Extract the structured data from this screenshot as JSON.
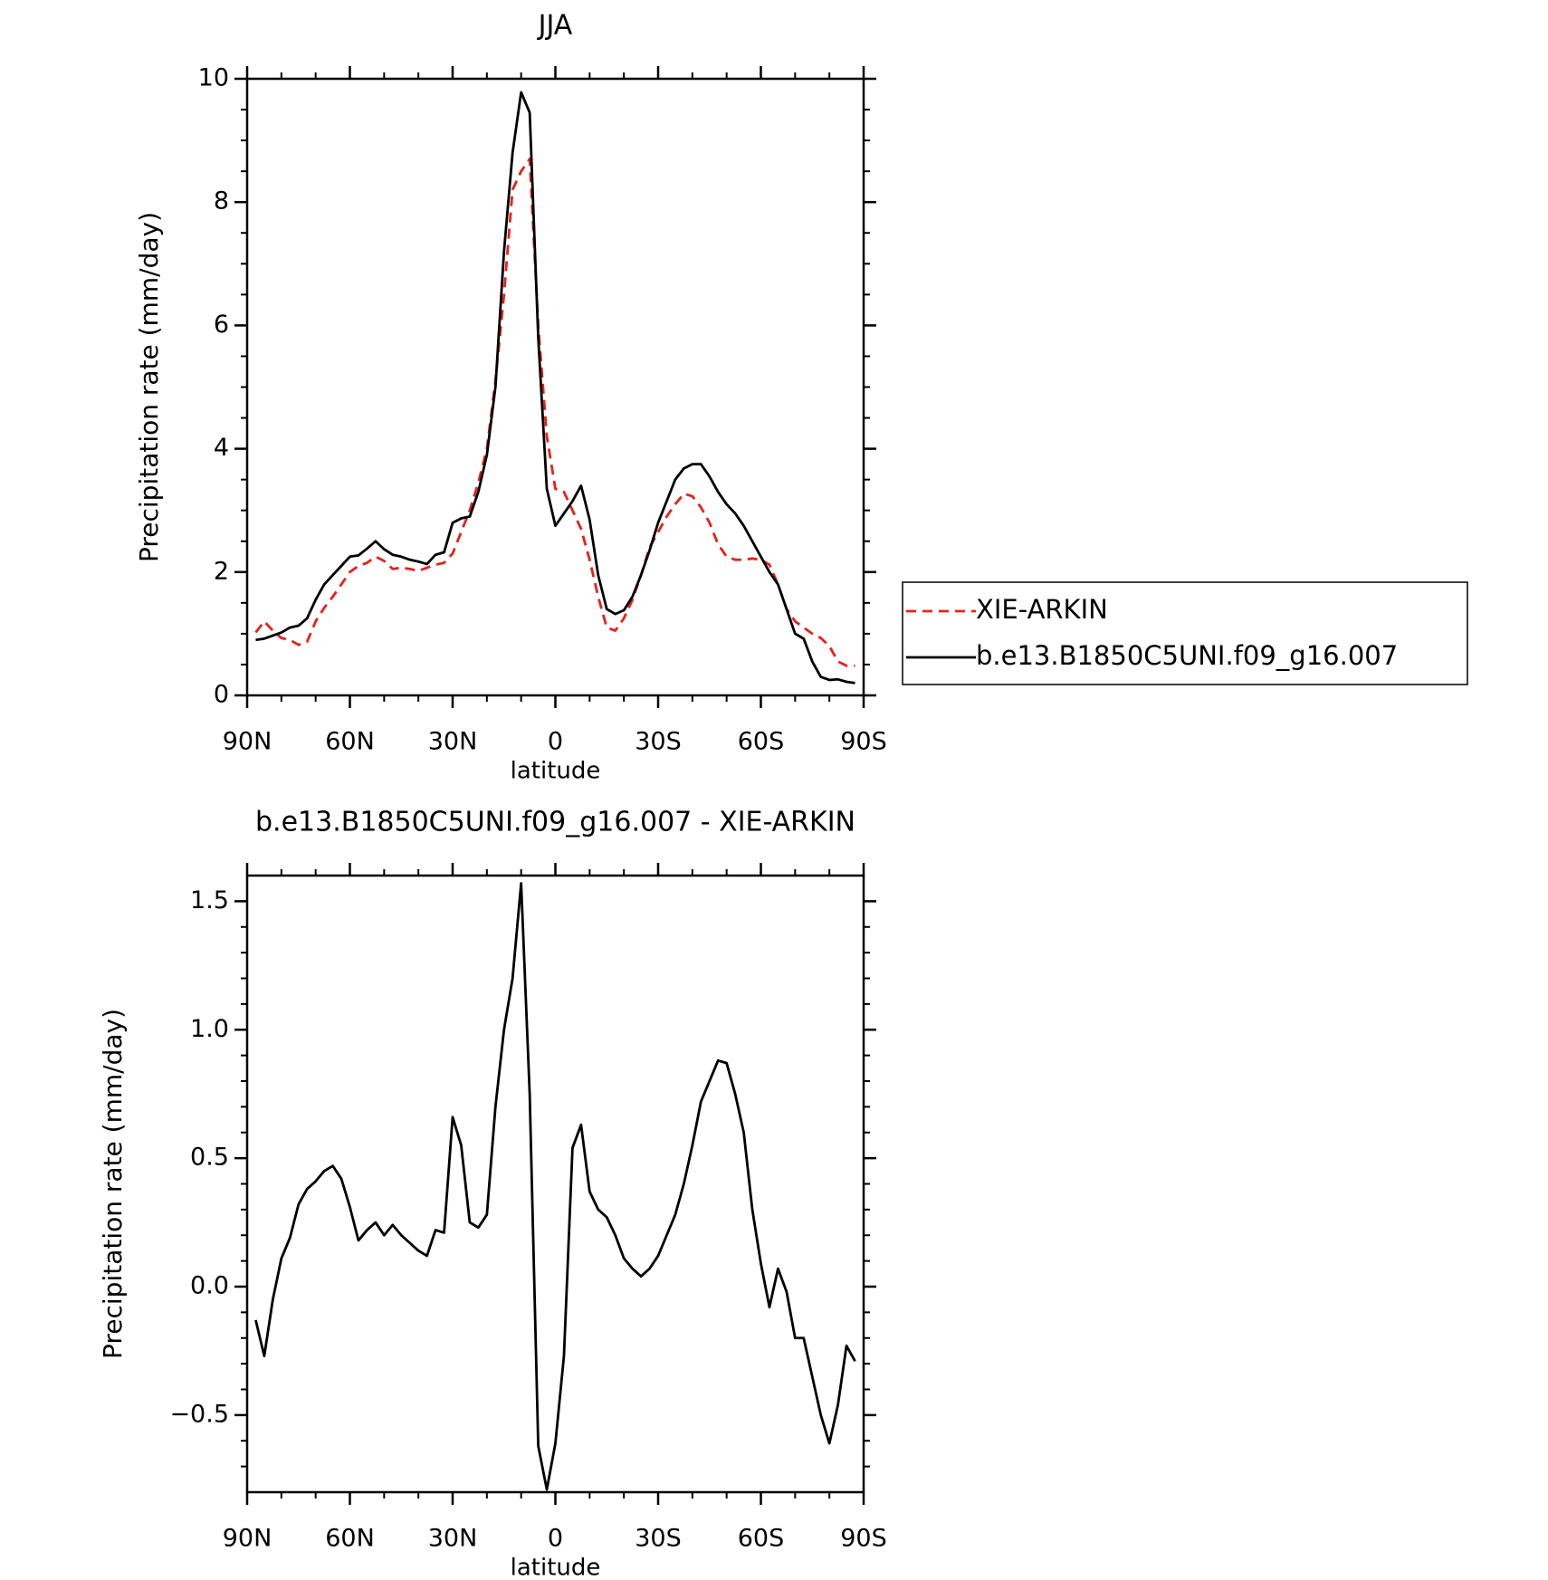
{
  "chart_data": [
    {
      "type": "line",
      "title": "JJA",
      "xlabel": "latitude",
      "ylabel": "Precipitation rate (mm/day)",
      "x": [
        87.5,
        85,
        82.5,
        80,
        77.5,
        75,
        72.5,
        70,
        67.5,
        65,
        62.5,
        60,
        57.5,
        55,
        52.5,
        50,
        47.5,
        45,
        42.5,
        40,
        37.5,
        35,
        32.5,
        30,
        27.5,
        25,
        22.5,
        20,
        17.5,
        15,
        12.5,
        10,
        7.5,
        5,
        2.5,
        0,
        -2.5,
        -5,
        -7.5,
        -10,
        -12.5,
        -15,
        -17.5,
        -20,
        -22.5,
        -25,
        -27.5,
        -30,
        -32.5,
        -35,
        -37.5,
        -40,
        -42.5,
        -45,
        -47.5,
        -50,
        -52.5,
        -55,
        -57.5,
        -60,
        -62.5,
        -65,
        -67.5,
        -70,
        -72.5,
        -75,
        -77.5,
        -80,
        -82.5,
        -85,
        -87.5
      ],
      "xlim": [
        90,
        -90
      ],
      "xticks": [
        {
          "value": 90,
          "label": "90N"
        },
        {
          "value": 60,
          "label": "60N"
        },
        {
          "value": 30,
          "label": "30N"
        },
        0,
        {
          "value": -30,
          "label": "30S"
        },
        {
          "value": -60,
          "label": "60S"
        },
        {
          "value": -90,
          "label": "90S"
        }
      ],
      "xminorticks": [
        80,
        70,
        50,
        40,
        20,
        10,
        -10,
        -20,
        -40,
        -50,
        -70,
        -80
      ],
      "ylim": [
        0,
        10
      ],
      "yticks": [
        0,
        2,
        4,
        6,
        8,
        10
      ],
      "yminorticks": [
        0.5,
        1,
        1.5,
        2.5,
        3,
        3.5,
        4.5,
        5,
        5.5,
        6.5,
        7,
        7.5,
        8.5,
        9,
        9.5
      ],
      "legend": "right",
      "series": [
        {
          "name": "XIE-ARKIN",
          "color": "#e8201c",
          "dashed": true,
          "values": [
            1.02,
            1.2,
            1.05,
            0.93,
            0.9,
            0.82,
            0.87,
            1.2,
            1.42,
            1.6,
            1.8,
            2.0,
            2.1,
            2.15,
            2.25,
            2.18,
            2.05,
            2.07,
            2.05,
            2.02,
            2.07,
            2.12,
            2.15,
            2.3,
            2.65,
            3.0,
            3.45,
            4.0,
            5.1,
            6.5,
            8.2,
            8.5,
            8.7,
            6.0,
            4.2,
            3.35,
            3.3,
            3.0,
            2.7,
            2.2,
            1.6,
            1.1,
            1.05,
            1.25,
            1.55,
            1.95,
            2.4,
            2.65,
            2.9,
            3.1,
            3.27,
            3.23,
            3.05,
            2.8,
            2.45,
            2.25,
            2.2,
            2.2,
            2.22,
            2.2,
            2.12,
            1.8,
            1.4,
            1.2,
            1.1,
            1.0,
            0.93,
            0.8,
            0.55,
            0.48,
            0.48
          ]
        },
        {
          "name": "b.e13.B1850C5UNI.f09_g16.007",
          "color": "#000000",
          "dashed": false,
          "values": [
            0.9,
            0.92,
            0.97,
            1.02,
            1.1,
            1.13,
            1.25,
            1.55,
            1.8,
            1.95,
            2.1,
            2.25,
            2.27,
            2.38,
            2.5,
            2.37,
            2.28,
            2.25,
            2.2,
            2.17,
            2.13,
            2.28,
            2.32,
            2.8,
            2.87,
            2.9,
            3.3,
            3.9,
            5.0,
            7.2,
            8.8,
            9.78,
            9.45,
            5.8,
            3.35,
            2.75,
            2.95,
            3.15,
            3.4,
            2.85,
            1.95,
            1.4,
            1.32,
            1.38,
            1.6,
            1.95,
            2.35,
            2.8,
            3.15,
            3.5,
            3.68,
            3.75,
            3.75,
            3.55,
            3.3,
            3.1,
            2.95,
            2.75,
            2.5,
            2.25,
            2.0,
            1.8,
            1.4,
            1.0,
            0.92,
            0.55,
            0.3,
            0.25,
            0.26,
            0.22,
            0.2
          ]
        }
      ]
    },
    {
      "type": "line",
      "title": "b.e13.B1850C5UNI.f09_g16.007 - XIE-ARKIN",
      "xlabel": "latitude",
      "ylabel": "Precipitation rate (mm/day)",
      "x": [
        87.5,
        85,
        82.5,
        80,
        77.5,
        75,
        72.5,
        70,
        67.5,
        65,
        62.5,
        60,
        57.5,
        55,
        52.5,
        50,
        47.5,
        45,
        42.5,
        40,
        37.5,
        35,
        32.5,
        30,
        27.5,
        25,
        22.5,
        20,
        17.5,
        15,
        12.5,
        10,
        7.5,
        5,
        2.5,
        0,
        -2.5,
        -5,
        -7.5,
        -10,
        -12.5,
        -15,
        -17.5,
        -20,
        -22.5,
        -25,
        -27.5,
        -30,
        -32.5,
        -35,
        -37.5,
        -40,
        -42.5,
        -45,
        -47.5,
        -50,
        -52.5,
        -55,
        -57.5,
        -60,
        -62.5,
        -65,
        -67.5,
        -70,
        -72.5,
        -75,
        -77.5,
        -80,
        -82.5,
        -85,
        -87.5
      ],
      "xlim": [
        90,
        -90
      ],
      "xticks": [
        {
          "value": 90,
          "label": "90N"
        },
        {
          "value": 60,
          "label": "60N"
        },
        {
          "value": 30,
          "label": "30N"
        },
        0,
        {
          "value": -30,
          "label": "30S"
        },
        {
          "value": -60,
          "label": "60S"
        },
        {
          "value": -90,
          "label": "90S"
        }
      ],
      "xminorticks": [
        80,
        70,
        50,
        40,
        20,
        10,
        -10,
        -20,
        -40,
        -50,
        -70,
        -80
      ],
      "ylim": [
        -0.8,
        1.6
      ],
      "yticks": [
        {
          "value": -0.5,
          "label": "−0.5"
        },
        {
          "value": 0,
          "label": "0.0"
        },
        {
          "value": 0.5,
          "label": "0.5"
        },
        {
          "value": 1,
          "label": "1.0"
        },
        {
          "value": 1.5,
          "label": "1.5"
        }
      ],
      "yminorticks": [
        -0.7,
        -0.6,
        -0.4,
        -0.3,
        -0.2,
        -0.1,
        0.1,
        0.2,
        0.3,
        0.4,
        0.6,
        0.7,
        0.8,
        0.9,
        1.1,
        1.2,
        1.3,
        1.4
      ],
      "series": [
        {
          "color": "#000000",
          "dashed": false,
          "values": [
            -0.13,
            -0.27,
            -0.05,
            0.11,
            0.19,
            0.32,
            0.38,
            0.41,
            0.45,
            0.47,
            0.42,
            0.31,
            0.18,
            0.22,
            0.25,
            0.2,
            0.24,
            0.2,
            0.17,
            0.14,
            0.12,
            0.22,
            0.21,
            0.66,
            0.55,
            0.25,
            0.23,
            0.28,
            0.7,
            1.0,
            1.2,
            1.57,
            0.75,
            -0.62,
            -0.79,
            -0.61,
            -0.27,
            0.54,
            0.63,
            0.37,
            0.3,
            0.27,
            0.2,
            0.11,
            0.07,
            0.04,
            0.07,
            0.12,
            0.2,
            0.28,
            0.4,
            0.55,
            0.72,
            0.8,
            0.88,
            0.87,
            0.75,
            0.6,
            0.3,
            0.09,
            -0.08,
            0.07,
            -0.02,
            -0.2,
            -0.2,
            -0.35,
            -0.5,
            -0.61,
            -0.46,
            -0.23,
            -0.29
          ]
        }
      ]
    }
  ]
}
